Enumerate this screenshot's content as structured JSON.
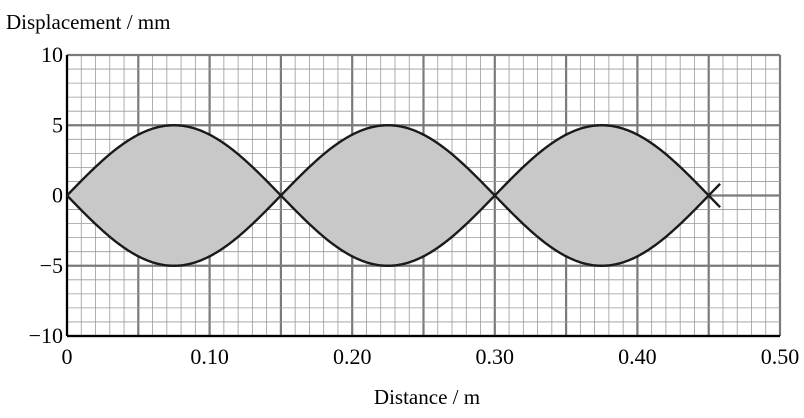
{
  "chart_data": {
    "type": "line",
    "title": "",
    "ylabel": "Displacement / mm",
    "xlabel": "Distance / m",
    "xlim": [
      0,
      0.5
    ],
    "ylim": [
      -10,
      10
    ],
    "x_major_step": 0.05,
    "x_minor_step": 0.01,
    "y_major_step": 5,
    "y_minor_step": 1,
    "x_tick_labels": [
      {
        "value": 0,
        "label": "0"
      },
      {
        "value": 0.1,
        "label": "0.10"
      },
      {
        "value": 0.2,
        "label": "0.20"
      },
      {
        "value": 0.3,
        "label": "0.30"
      },
      {
        "value": 0.4,
        "label": "0.40"
      },
      {
        "value": 0.5,
        "label": "0.50"
      }
    ],
    "y_tick_labels": [
      {
        "value": 10,
        "label": "10"
      },
      {
        "value": 5,
        "label": "5"
      },
      {
        "value": 0,
        "label": "0"
      },
      {
        "value": -5,
        "label": "−5"
      },
      {
        "value": -10,
        "label": "−10"
      }
    ],
    "wave": {
      "amplitude": 5,
      "wavelength": 0.3,
      "x_end": 0.458,
      "nodes": [
        0,
        0.15,
        0.3,
        0.45
      ],
      "antinodes": [
        0.075,
        0.225,
        0.375
      ]
    },
    "series": [
      {
        "values_note": "",
        "x_range": [
          0,
          0.458
        ],
        "envelope": "upper"
      },
      {
        "values_note": "",
        "x_range": [
          0,
          0.458
        ],
        "envelope": "lower"
      }
    ],
    "grid": true,
    "colors": {
      "fill": "#c8c8c8",
      "curve": "#1a1a1a",
      "major_grid": "#7a7a7a",
      "minor_grid": "#9a9a9a",
      "axis": "#000000"
    }
  }
}
